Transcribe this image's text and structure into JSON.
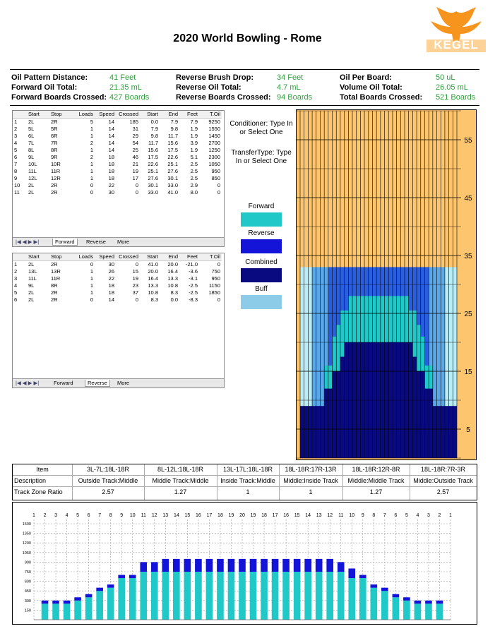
{
  "title": "2020 World Bowling - Rome",
  "logo": {
    "text": "KEGEL",
    "color": "#f7941d"
  },
  "stats": [
    {
      "label": "Oil Pattern Distance:",
      "value": "41 Feet"
    },
    {
      "label": "Forward Oil Total:",
      "value": "21.35 mL"
    },
    {
      "label": "Forward Boards Crossed:",
      "value": "427 Boards"
    },
    {
      "label": "Reverse Brush Drop:",
      "value": "34 Feet"
    },
    {
      "label": "Reverse Oil Total:",
      "value": "4.7 mL"
    },
    {
      "label": "Reverse Boards Crossed:",
      "value": "94 Boards"
    },
    {
      "label": "Oil Per Board:",
      "value": "50 uL"
    },
    {
      "label": "Volume Oil Total:",
      "value": "26.05 mL"
    },
    {
      "label": "Total Boards Crossed:",
      "value": "521 Boards"
    }
  ],
  "forward_table": {
    "headers": [
      "",
      "Start",
      "Stop",
      "Loads",
      "Speed",
      "Crossed",
      "Start",
      "End",
      "Feet",
      "T.Oil"
    ],
    "rows": [
      [
        "1",
        "2L",
        "2R",
        "5",
        "14",
        "185",
        "0.0",
        "7.9",
        "7.9",
        "9250"
      ],
      [
        "2",
        "5L",
        "5R",
        "1",
        "14",
        "31",
        "7.9",
        "9.8",
        "1.9",
        "1550"
      ],
      [
        "3",
        "6L",
        "6R",
        "1",
        "14",
        "29",
        "9.8",
        "11.7",
        "1.9",
        "1450"
      ],
      [
        "4",
        "7L",
        "7R",
        "2",
        "14",
        "54",
        "11.7",
        "15.6",
        "3.9",
        "2700"
      ],
      [
        "5",
        "8L",
        "8R",
        "1",
        "14",
        "25",
        "15.6",
        "17.5",
        "1.9",
        "1250"
      ],
      [
        "6",
        "9L",
        "9R",
        "2",
        "18",
        "46",
        "17.5",
        "22.6",
        "5.1",
        "2300"
      ],
      [
        "7",
        "10L",
        "10R",
        "1",
        "18",
        "21",
        "22.6",
        "25.1",
        "2.5",
        "1050"
      ],
      [
        "8",
        "11L",
        "11R",
        "1",
        "18",
        "19",
        "25.1",
        "27.6",
        "2.5",
        "950"
      ],
      [
        "9",
        "12L",
        "12R",
        "1",
        "18",
        "17",
        "27.6",
        "30.1",
        "2.5",
        "850"
      ],
      [
        "10",
        "2L",
        "2R",
        "0",
        "22",
        "0",
        "30.1",
        "33.0",
        "2.9",
        "0"
      ],
      [
        "11",
        "2L",
        "2R",
        "0",
        "30",
        "0",
        "33.0",
        "41.0",
        "8.0",
        "0"
      ]
    ]
  },
  "reverse_table": {
    "headers": [
      "",
      "Start",
      "Stop",
      "Loads",
      "Speed",
      "Crossed",
      "Start",
      "End",
      "Feet",
      "T.Oil"
    ],
    "rows": [
      [
        "1",
        "2L",
        "2R",
        "0",
        "30",
        "0",
        "41.0",
        "20.0",
        "-21.0",
        "0"
      ],
      [
        "2",
        "13L",
        "13R",
        "1",
        "26",
        "15",
        "20.0",
        "16.4",
        "-3.6",
        "750"
      ],
      [
        "3",
        "11L",
        "11R",
        "1",
        "22",
        "19",
        "16.4",
        "13.3",
        "-3.1",
        "950"
      ],
      [
        "4",
        "9L",
        "8R",
        "1",
        "18",
        "23",
        "13.3",
        "10.8",
        "-2.5",
        "1150"
      ],
      [
        "5",
        "2L",
        "2R",
        "1",
        "18",
        "37",
        "10.8",
        "8.3",
        "-2.5",
        "1850"
      ],
      [
        "6",
        "2L",
        "2R",
        "0",
        "14",
        "0",
        "8.3",
        "0.0",
        "-8.3",
        "0"
      ]
    ]
  },
  "sheet_tabs": {
    "forward": "Forward",
    "reverse": "Reverse",
    "more": "More"
  },
  "conditioner": {
    "conditioner_text": "Conditioner: Type In or Select One",
    "transfer_text": "TransferType: Type In or Select One"
  },
  "legend": [
    {
      "label": "Forward",
      "color": "#20c8c8"
    },
    {
      "label": "Reverse",
      "color": "#1414d8"
    },
    {
      "label": "Combined",
      "color": "#0a0a80"
    },
    {
      "label": "Buff",
      "color": "#8dcce8"
    }
  ],
  "lane_graph": {
    "distance_labels": [
      "55",
      "45",
      "35",
      "25",
      "15",
      "5"
    ],
    "background": "#fcc56e"
  },
  "zone_table": {
    "row_labels": [
      "Item",
      "Description",
      "Track Zone Ratio"
    ],
    "columns": [
      {
        "item": "3L-7L:18L-18R",
        "desc": "Outside Track:Middle",
        "ratio": "2.57"
      },
      {
        "item": "8L-12L:18L-18R",
        "desc": "Middle Track:Middle",
        "ratio": "1.27"
      },
      {
        "item": "13L-17L:18L-18R",
        "desc": "Inside Track:Middle",
        "ratio": "1"
      },
      {
        "item": "18L-18R:17R-13R",
        "desc": "Middle:Inside Track",
        "ratio": "1"
      },
      {
        "item": "18L-18R:12R-8R",
        "desc": "Middle:Middle Track",
        "ratio": "1.27"
      },
      {
        "item": "18L-18R:7R-3R",
        "desc": "Middle:Outside Track",
        "ratio": "2.57"
      }
    ]
  },
  "chart_data": {
    "type": "bar",
    "title": "",
    "xlabel": "",
    "ylabel": "",
    "categories": [
      "1",
      "2",
      "3",
      "4",
      "5",
      "6",
      "7",
      "8",
      "9",
      "10",
      "11",
      "12",
      "13",
      "14",
      "15",
      "16",
      "17",
      "18",
      "19",
      "20",
      "19",
      "18",
      "17",
      "16",
      "15",
      "14",
      "13",
      "12",
      "11",
      "10",
      "9",
      "8",
      "7",
      "6",
      "5",
      "4",
      "3",
      "2",
      "1"
    ],
    "ylim": [
      0,
      1500
    ],
    "yticks": [
      "1500",
      "1350",
      "1200",
      "1050",
      "900",
      "750",
      "600",
      "450",
      "300",
      "150"
    ],
    "series": [
      {
        "name": "Forward",
        "color": "#20c8c8",
        "values": [
          0,
          250,
          250,
          250,
          300,
          350,
          450,
          500,
          650,
          650,
          750,
          750,
          750,
          750,
          750,
          750,
          750,
          750,
          750,
          750,
          750,
          750,
          750,
          750,
          750,
          750,
          750,
          750,
          750,
          650,
          650,
          500,
          450,
          350,
          300,
          250,
          250,
          250,
          0
        ]
      },
      {
        "name": "Reverse",
        "color": "#1414d8",
        "values": [
          0,
          50,
          50,
          50,
          50,
          50,
          50,
          50,
          50,
          50,
          150,
          150,
          200,
          200,
          200,
          200,
          200,
          200,
          200,
          200,
          200,
          200,
          200,
          200,
          200,
          200,
          200,
          200,
          150,
          150,
          50,
          50,
          50,
          50,
          50,
          50,
          50,
          50,
          0
        ]
      }
    ]
  }
}
